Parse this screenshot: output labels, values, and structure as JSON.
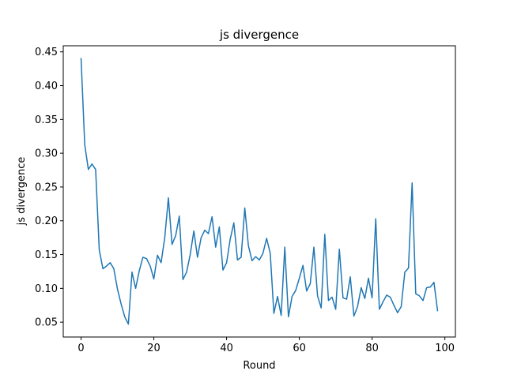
{
  "chart_data": {
    "type": "line",
    "title": "js divergence",
    "xlabel": "Round",
    "ylabel": "js divergence",
    "xlim": [
      -4.9,
      102.9
    ],
    "ylim": [
      0.028,
      0.459
    ],
    "xticks": [
      0,
      20,
      40,
      60,
      80,
      100
    ],
    "xtick_labels": [
      "0",
      "20",
      "40",
      "60",
      "80",
      "100"
    ],
    "yticks": [
      0.05,
      0.1,
      0.15,
      0.2,
      0.25,
      0.3,
      0.35,
      0.4,
      0.45
    ],
    "ytick_labels": [
      "0.05",
      "0.10",
      "0.15",
      "0.20",
      "0.25",
      "0.30",
      "0.35",
      "0.40",
      "0.45"
    ],
    "grid": false,
    "legend": "none",
    "series": [
      {
        "color": "#1f77b4",
        "x": [
          0,
          1,
          2,
          3,
          4,
          5,
          6,
          7,
          8,
          9,
          10,
          11,
          12,
          13,
          14,
          15,
          16,
          17,
          18,
          19,
          20,
          21,
          22,
          23,
          24,
          25,
          26,
          27,
          28,
          29,
          30,
          31,
          32,
          33,
          34,
          35,
          36,
          37,
          38,
          39,
          40,
          41,
          42,
          43,
          44,
          45,
          46,
          47,
          48,
          49,
          50,
          51,
          52,
          53,
          54,
          55,
          56,
          57,
          58,
          59,
          60,
          61,
          62,
          63,
          64,
          65,
          66,
          67,
          68,
          69,
          70,
          71,
          72,
          73,
          74,
          75,
          76,
          77,
          78,
          79,
          80,
          81,
          82,
          83,
          84,
          85,
          86,
          87,
          88,
          89,
          90,
          91,
          92,
          93,
          94,
          95,
          96,
          97,
          98
        ],
        "y": [
          0.44,
          0.313,
          0.276,
          0.284,
          0.276,
          0.157,
          0.129,
          0.133,
          0.138,
          0.129,
          0.099,
          0.077,
          0.058,
          0.047,
          0.124,
          0.1,
          0.126,
          0.146,
          0.144,
          0.133,
          0.114,
          0.149,
          0.138,
          0.175,
          0.234,
          0.165,
          0.178,
          0.207,
          0.113,
          0.124,
          0.15,
          0.185,
          0.146,
          0.175,
          0.186,
          0.181,
          0.206,
          0.161,
          0.191,
          0.127,
          0.138,
          0.173,
          0.197,
          0.142,
          0.146,
          0.219,
          0.163,
          0.141,
          0.147,
          0.142,
          0.152,
          0.174,
          0.152,
          0.063,
          0.088,
          0.06,
          0.161,
          0.058,
          0.088,
          0.097,
          0.115,
          0.134,
          0.096,
          0.107,
          0.161,
          0.089,
          0.071,
          0.18,
          0.082,
          0.087,
          0.069,
          0.158,
          0.086,
          0.084,
          0.117,
          0.059,
          0.073,
          0.101,
          0.085,
          0.115,
          0.086,
          0.203,
          0.069,
          0.08,
          0.09,
          0.087,
          0.075,
          0.064,
          0.073,
          0.124,
          0.13,
          0.256,
          0.092,
          0.089,
          0.082,
          0.101,
          0.102,
          0.109,
          0.067
        ]
      }
    ]
  }
}
